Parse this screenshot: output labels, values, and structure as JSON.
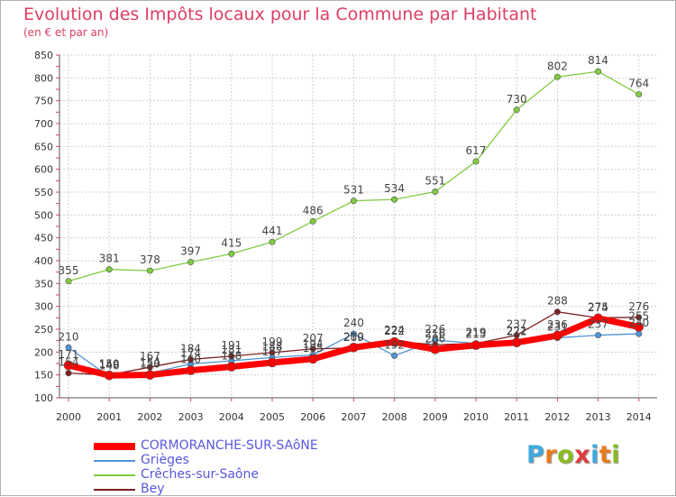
{
  "chart_data": {
    "type": "line",
    "title": "Evolution des Impôts locaux pour la Commune par Habitant",
    "subtitle": "(en € et par an)",
    "x": [
      "2000",
      "2001",
      "2002",
      "2003",
      "2004",
      "2005",
      "2006",
      "2007",
      "2008",
      "2009",
      "2010",
      "2011",
      "2012",
      "2013",
      "2014"
    ],
    "ylim": [
      100,
      850
    ],
    "yticks": [
      100,
      150,
      200,
      250,
      300,
      350,
      400,
      450,
      500,
      550,
      600,
      650,
      700,
      750,
      800,
      850
    ],
    "grid": true,
    "series": [
      {
        "name": "CORMORANCHE-SUR-SAôNE",
        "color": "#ff0000",
        "values": [
          171,
          149,
          150,
          160,
          168,
          177,
          185,
          210,
          222,
          206,
          215,
          221,
          236,
          274,
          255
        ]
      },
      {
        "name": "Grièges",
        "color": "#4f94d4",
        "values": [
          210,
          146,
          154,
          174,
          181,
          188,
          194,
          240,
          192,
          226,
          219,
          222,
          231,
          237,
          240
        ]
      },
      {
        "name": "Crêches-sur-Saône",
        "color": "#7fcc42",
        "values": [
          355,
          381,
          378,
          397,
          415,
          441,
          486,
          531,
          534,
          551,
          617,
          730,
          802,
          814,
          764
        ]
      },
      {
        "name": "Bey",
        "color": "#7b2222",
        "values": [
          154,
          150,
          167,
          184,
          191,
          199,
          207,
          209,
          224,
          216,
          219,
          237,
          288,
          275,
          276
        ]
      }
    ]
  },
  "legend": {
    "items": [
      "CORMORANCHE-SUR-SAôNE",
      "Grièges",
      "Crêches-sur-Saône",
      "Bey"
    ]
  },
  "logo": {
    "parts": [
      "P",
      "r",
      "o",
      "x",
      "i",
      "t",
      "i"
    ],
    "colors": [
      "#3fa9dd",
      "#e87b1e",
      "#88bb22",
      "#e03b3b",
      "#3fa9dd",
      "#e87b1e",
      "#88bb22"
    ]
  }
}
